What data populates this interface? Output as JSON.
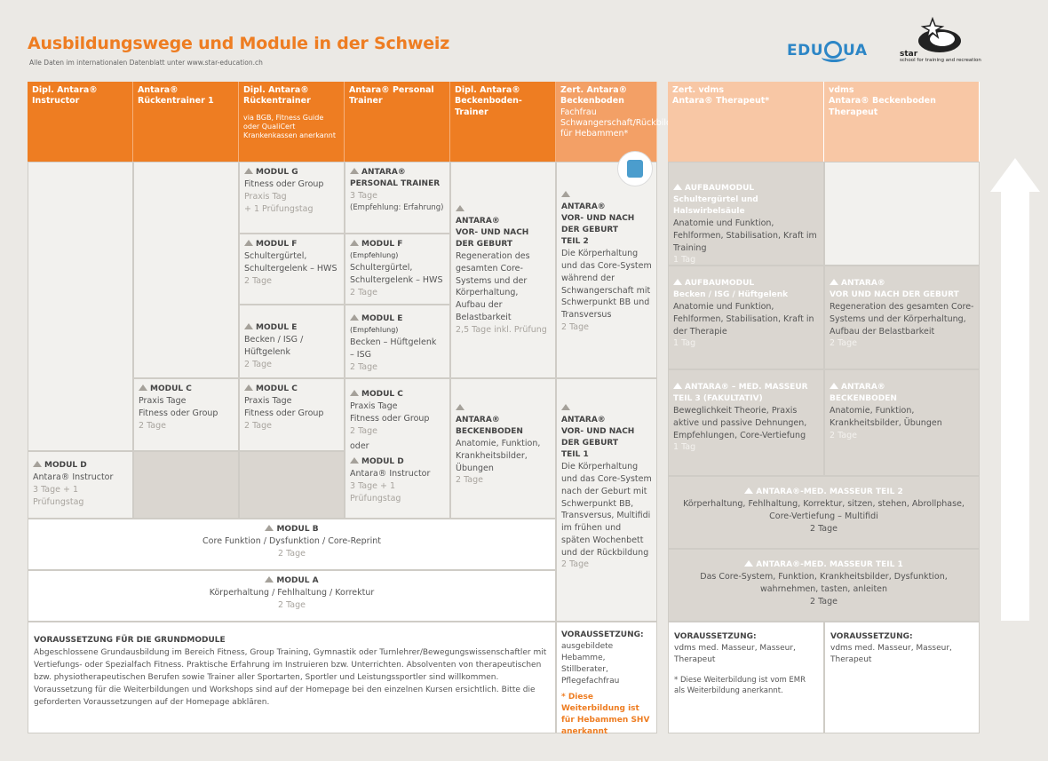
{
  "header": {
    "title": "Ausbildungswege und Module in der Schweiz",
    "subtitle": "Alle Daten im internationalen Datenblatt unter www.star-education.ch",
    "logo_eduqua_a": "EDU",
    "logo_eduqua_b": "UA",
    "logo_star": "star",
    "logo_star_sub": "school for training and recreation"
  },
  "columns": {
    "c1": "Dipl. Antara® Instructor",
    "c2": "Antara® Rückentrainer 1",
    "c3": "Dipl. Antara® Rückentrainer",
    "c3_note": "via BGB, Fitness Guide oder QualiCert Krankenkassen anerkannt",
    "c4": "Antara® Personal Trainer",
    "c5": "Dipl. Antara® Beckenboden-Trainer",
    "c6_title": "Zert. Antara® Beckenboden",
    "c6_sub": "Fachfrau Schwangerschaft/Rückbildung für Hebammen*",
    "c7_a": "Zert. vdms",
    "c7_b": "Antara® Therapeut*",
    "c8_a": "vdms",
    "c8_b": "Antara® Beckenboden Therapeut"
  },
  "cells": {
    "modul_g": {
      "t": "MODUL G",
      "l1": "Fitness oder Group",
      "l2": "Praxis Tag",
      "l3": "+ 1 Prüfungstag"
    },
    "modul_f": {
      "t": "MODUL F",
      "l1": "Schultergürtel,",
      "l2": "Schultergelenk – HWS",
      "l3": "2 Tage"
    },
    "modul_e": {
      "t": "MODUL E",
      "l1": "Becken / ISG / Hüftgelenk",
      "l2": "2 Tage"
    },
    "pt": {
      "t1": "ANTARA®",
      "t2": "PERSONAL TRAINER",
      "l1": "3 Tage",
      "l2": "(Empfehlung: Erfahrung)"
    },
    "pt_f": {
      "t": "MODUL F",
      "rec": "(Empfehlung)",
      "l1": "Schultergürtel,",
      "l2": "Schultergelenk – HWS",
      "l3": "2 Tage"
    },
    "pt_e": {
      "t": "MODUL E",
      "rec": "(Empfehlung)",
      "l1": "Becken – Hüftgelenk",
      "l2": "– ISG",
      "l3": "2 Tage"
    },
    "bb1": {
      "t1": "ANTARA®",
      "t2": "VOR- UND NACH",
      "t3": "DER GEBURT",
      "l1": "Regeneration des gesamten Core-Systems und der Körperhaltung, Aufbau der Belastbarkeit",
      "l2": "2,5 Tage inkl. Prüfung"
    },
    "heb2": {
      "t1": "ANTARA®",
      "t2": "VOR- UND NACH",
      "t3": "DER GEBURT",
      "t4": "TEIL 2",
      "l1": "Die Körperhaltung und das Core-System während der Schwangerschaft mit Schwerpunkt BB und Transversus",
      "l2": "2 Tage"
    },
    "c2_modc": {
      "t": "MODUL C",
      "l1": "Praxis Tage",
      "l2": "Fitness oder Group",
      "l3": "2 Tage"
    },
    "c3_modc": {
      "t": "MODUL C",
      "l1": "Praxis Tage",
      "l2": "Fitness oder Group",
      "l3": "2 Tage"
    },
    "c4_modc": {
      "t": "MODUL C",
      "l1": "Praxis Tage",
      "l2": "Fitness oder Group",
      "l3": "2 Tage",
      "oder": "oder"
    },
    "c4_modd": {
      "t": "MODUL D",
      "l1": "Antara® Instructor",
      "l2": "3 Tage + 1 Prüfungstag"
    },
    "bb2": {
      "t1": "ANTARA®",
      "t2": "BECKENBODEN",
      "l1": "Anatomie, Funktion, Krankheitsbilder, Übungen",
      "l2": "2 Tage"
    },
    "heb1": {
      "t1": "ANTARA®",
      "t2": "VOR- UND NACH",
      "t3": "DER GEBURT",
      "t4": "TEIL 1",
      "l1": "Die Körperhaltung und das Core-System nach der Geburt mit Schwerpunkt BB, Transversus, Multifidi im frühen und späten Wochenbett und der Rückbildung",
      "l2": "2 Tage"
    },
    "c1_modd": {
      "t": "MODUL D",
      "l1": "Antara® Instructor",
      "l2": "3 Tage + 1 Prüfungstag"
    },
    "modb": {
      "t": "MODUL B",
      "l1": "Core Funktion / Dysfunktion / Core-Reprint",
      "l2": "2 Tage"
    },
    "moda": {
      "t": "MODUL A",
      "l1": "Körperhaltung / Fehlhaltung / Korrektur",
      "l2": "2 Tage"
    },
    "auf1": {
      "t1": "AUFBAUMODUL",
      "t2": "Schultergürtel und Halswirbelsäule",
      "l1": "Anatomie und Funktion, Fehlformen, Stabilisation, Kraft im Training",
      "l2": "1 Tag"
    },
    "auf2": {
      "t1": "AUFBAUMODUL",
      "t2": "Becken / ISG / Hüftgelenk",
      "l1": "Anatomie und Funktion, Fehlformen, Stabilisation, Kraft in der Therapie",
      "l2": "1 Tag"
    },
    "th_geb": {
      "t1": "ANTARA®",
      "t2": "VOR UND NACH DER GEBURT",
      "l1": "Regeneration des gesamten Core-Systems und der Körperhaltung, Aufbau der Belastbarkeit",
      "l2": "2 Tage"
    },
    "mm3": {
      "t1": "ANTARA® – MED. MASSEUR",
      "t2": "TEIL 3 (FAKULTATIV)",
      "l1": "Beweglichkeit Theorie, Praxis aktive und passive Dehnungen, Empfehlungen, Core-Vertiefung",
      "l2": "1 Tag"
    },
    "th_bb": {
      "t1": "ANTARA®",
      "t2": "BECKENBODEN",
      "l1": "Anatomie, Funktion, Krankheitsbilder, Übungen",
      "l2": "2 Tage"
    },
    "mm2": {
      "t": "ANTARA®-MED. MASSEUR TEIL 2",
      "l1": "Körperhaltung, Fehlhaltung, Korrektur, sitzen, stehen, Abrollphase, Core-Vertiefung – Multifidi",
      "l2": "2 Tage"
    },
    "mm1": {
      "t": "ANTARA®-MED. MASSEUR TEIL 1",
      "l1": "Das Core-System, Funktion, Krankheitsbilder, Dysfunktion, wahrnehmen, tasten, anleiten",
      "l2": "2 Tage"
    }
  },
  "footer": {
    "grund_title": "VORAUSSETZUNG FÜR DIE GRUNDMODULE",
    "grund_text": "Abgeschlossene Grundausbildung im Bereich Fitness, Group Training, Gymnastik oder Turnlehrer/Bewegungswissenschaftler mit Vertiefungs- oder Spezialfach Fitness. Praktische Erfahrung im Instruieren bzw. Unterrichten. Absolventen von therapeutischen bzw. physiotherapeutischen Berufen sowie Trainer aller Sportarten, Sportler und Leistungssportler sind willkommen. Voraussetzung für die Weiterbildungen und Workshops sind auf der Homepage bei den einzelnen Kursen ersichtlich. Bitte die geforderten Voraussetzungen auf der Homepage abklären.",
    "heb_title": "VORAUSSETZUNG:",
    "heb_text": "ausgebildete Hebamme, Stillberater, Pflegefachfrau",
    "heb_note": "* Diese Weiterbildung ist für Hebammen SHV anerkannt",
    "th1_title": "VORAUSSETZUNG:",
    "th1_text": "vdms med. Masseur, Masseur, Therapeut",
    "th1_note": "* Diese Weiterbildung ist vom EMR als Weiterbildung anerkannt.",
    "th2_title": "VORAUSSETZUNG:",
    "th2_text": "vdms med. Masseur, Masseur, Therapeut"
  },
  "colors": {
    "orange": "#ee7d22",
    "orange_light": "#f3a066",
    "orange_pale": "#f8c7a5",
    "grey_cell": "#dad6d0"
  }
}
